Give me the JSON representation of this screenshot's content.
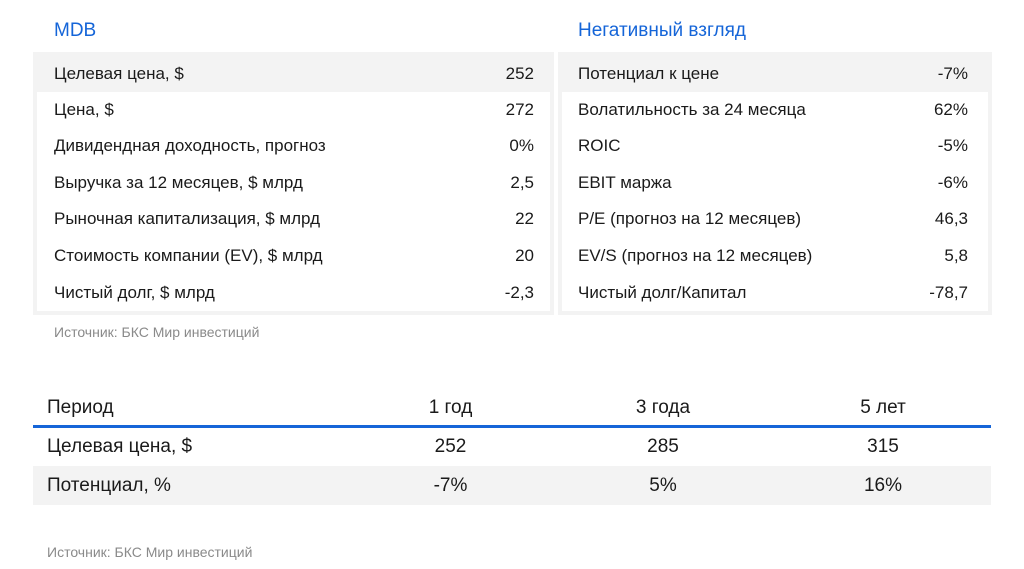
{
  "left_table": {
    "title": "MDB",
    "rows": [
      {
        "label": "Целевая цена, $",
        "value": "252"
      },
      {
        "label": "Цена, $",
        "value": "272"
      },
      {
        "label": "Дивидендная доходность, прогноз",
        "value": "0%"
      },
      {
        "label": "Выручка за 12 месяцев, $ млрд",
        "value": "2,5"
      },
      {
        "label": "Рыночная капитализация, $ млрд",
        "value": "22"
      },
      {
        "label": "Стоимость компании (EV), $ млрд",
        "value": "20"
      },
      {
        "label": "Чистый долг, $ млрд",
        "value": "-2,3"
      }
    ]
  },
  "right_table": {
    "title": "Негативный взгляд",
    "rows": [
      {
        "label": "Потенциал к цене",
        "value": "-7%"
      },
      {
        "label": "Волатильность за 24 месяца",
        "value": "62%"
      },
      {
        "label": "ROIC",
        "value": "-5%"
      },
      {
        "label": "EBIT маржа",
        "value": "-6%"
      },
      {
        "label": "P/E (прогноз на 12 месяцев)",
        "value": "46,3"
      },
      {
        "label": "EV/S (прогноз на 12 месяцев)",
        "value": "5,8"
      },
      {
        "label": "Чистый долг/Капитал",
        "value": "-78,7"
      }
    ]
  },
  "source_top": "Источник: БКС Мир инвестиций",
  "period_table": {
    "headers": [
      "Период",
      "1 год",
      "3 года",
      "5 лет"
    ],
    "rows": [
      [
        "Целевая цена, $",
        "252",
        "285",
        "315"
      ],
      [
        "Потенциал, %",
        "-7%",
        "5%",
        "16%"
      ]
    ]
  },
  "source_bottom": "Источник: БКС Мир инвестиций",
  "colors": {
    "accent": "#1565d8",
    "stripe": "#f3f3f3",
    "muted": "#8a8a8a"
  }
}
